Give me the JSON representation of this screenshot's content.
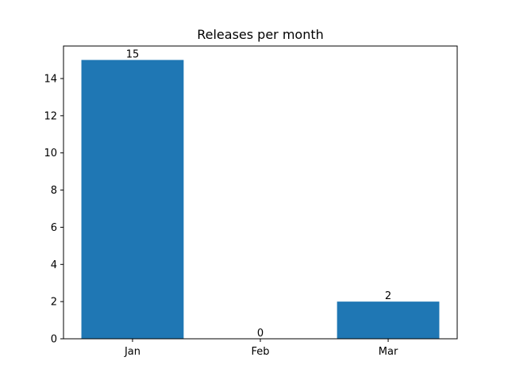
{
  "chart_data": {
    "type": "bar",
    "title": "Releases per month",
    "xlabel": "",
    "ylabel": "",
    "categories": [
      "Jan",
      "Feb",
      "Mar"
    ],
    "values": [
      15,
      0,
      2
    ],
    "data_labels": [
      "15",
      "0",
      "2"
    ],
    "ylim": [
      0,
      15.75
    ],
    "yticks": [
      0,
      2,
      4,
      6,
      8,
      10,
      12,
      14
    ],
    "bar_color": "#1f77b4",
    "grid": false,
    "legend": "none"
  }
}
